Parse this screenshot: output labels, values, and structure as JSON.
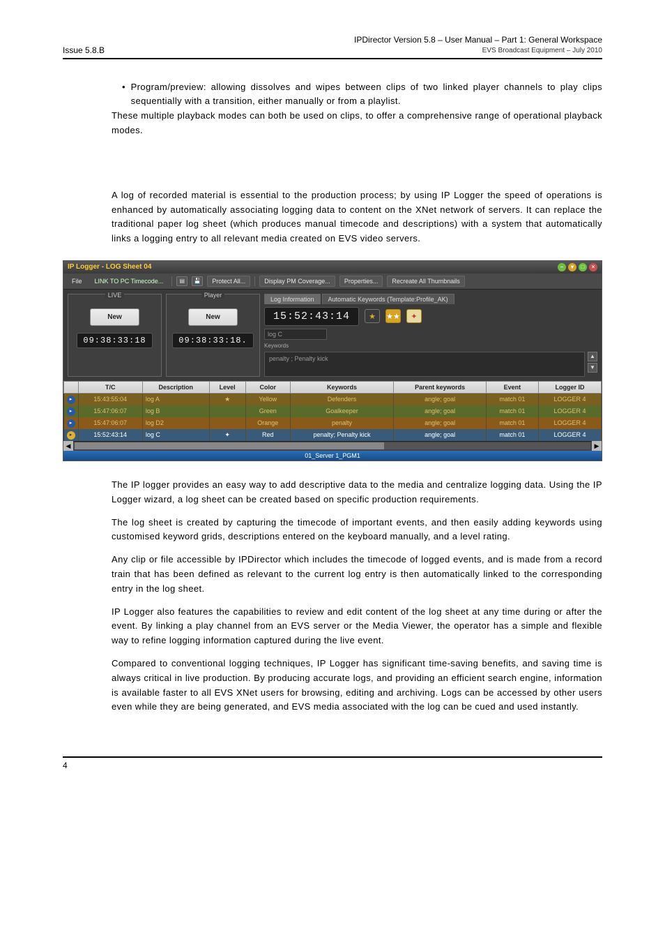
{
  "header": {
    "issue": "Issue 5.8.B",
    "title": "IPDirector Version 5.8 – User Manual – Part 1: General Workspace",
    "sub": "EVS Broadcast Equipment   – July 2010"
  },
  "bullet": "Program/preview: allowing dissolves and wipes between clips of two linked player channels to play clips sequentially with a transition, either manually or from a playlist.",
  "para1": "These multiple playback modes can both be used on clips, to offer a comprehensive range of operational playback modes.",
  "para2": "A log of recorded material is essential to the production process; by using IP Logger the speed of operations is enhanced by automatically associating logging data to content on the XNet network of servers. It can replace the traditional paper log sheet (which produces manual timecode and descriptions) with a system that automatically links a logging entry to all relevant media created on EVS video servers.",
  "iplogger": {
    "title": "IP Logger - LOG Sheet 04",
    "toolbar": {
      "file": "File",
      "link": "LINK TO PC Timecode...",
      "protect": "Protect All...",
      "display": "Display PM Coverage...",
      "properties": "Properties...",
      "recreate": "Recreate All Thumbnails"
    },
    "live_label": "LIVE",
    "player_label": "Player",
    "btn_new": "New",
    "live_tc": "09:38:33:18",
    "player_tc": "09:38:33:18.",
    "tab1": "Log Information",
    "tab2": "Automatic Keywords (Template:Profile_AK)",
    "main_tc": "15:52:43:14",
    "logc_label": "log C",
    "keywords_label": "Keywords",
    "keywords_value": "penalty ; Penalty kick",
    "columns": [
      "",
      "T/C",
      "Description",
      "Level",
      "Color",
      "Keywords",
      "Parent keywords",
      "Event",
      "Logger ID"
    ],
    "rows": [
      {
        "tc": "15:43:55:04",
        "desc": "log A",
        "level": "★",
        "color": "Yellow",
        "kw": "Defenders",
        "pkw": "angle; goal",
        "ev": "match 01",
        "id": "LOGGER 4",
        "cls": "r-yellow"
      },
      {
        "tc": "15:47:06:07",
        "desc": "log B",
        "level": "",
        "color": "Green",
        "kw": "Goalkeeper",
        "pkw": "angle; goal",
        "ev": "match 01",
        "id": "LOGGER 4",
        "cls": "r-green"
      },
      {
        "tc": "15:47:06:07",
        "desc": "log D2",
        "level": "",
        "color": "Orange",
        "kw": "penalty",
        "pkw": "angle; goal",
        "ev": "match 01",
        "id": "LOGGER 4",
        "cls": "r-orange"
      },
      {
        "tc": "15:52:43:14",
        "desc": "log C",
        "level": "✦",
        "color": "Red",
        "kw": "penalty; Penalty kick",
        "pkw": "angle; goal",
        "ev": "match 01",
        "id": "LOGGER 4",
        "cls": "r-sel"
      }
    ],
    "footer": "01_Server 1_PGM1"
  },
  "para3": "The IP logger provides an easy way to add descriptive data to the media and centralize logging data. Using the IP Logger wizard, a log sheet can be created based on specific production requirements.",
  "para4": "The log sheet is created by capturing the timecode of important events, and then easily adding keywords using customised keyword grids, descriptions entered on the keyboard manually, and a level rating.",
  "para5": "Any clip or file accessible by IPDirector which includes the timecode of logged events, and is made from a record train that has been defined as relevant to the current log entry is then automatically linked to the corresponding entry in the log sheet.",
  "para6": "IP Logger also features the capabilities to review and edit content of the log sheet at any time during or after the event. By linking a play channel from an EVS server or the Media Viewer, the operator has a simple and flexible way to refine logging information captured during the live event.",
  "para7": "Compared to conventional logging techniques, IP Logger has significant time-saving benefits, and saving time is always critical in live production. By producing accurate logs, and providing an efficient search engine, information is available faster to all EVS XNet users for browsing, editing and archiving. Logs can be accessed by other users even while they are being generated, and EVS media associated with the log can be cued and used instantly.",
  "page_number": "4"
}
